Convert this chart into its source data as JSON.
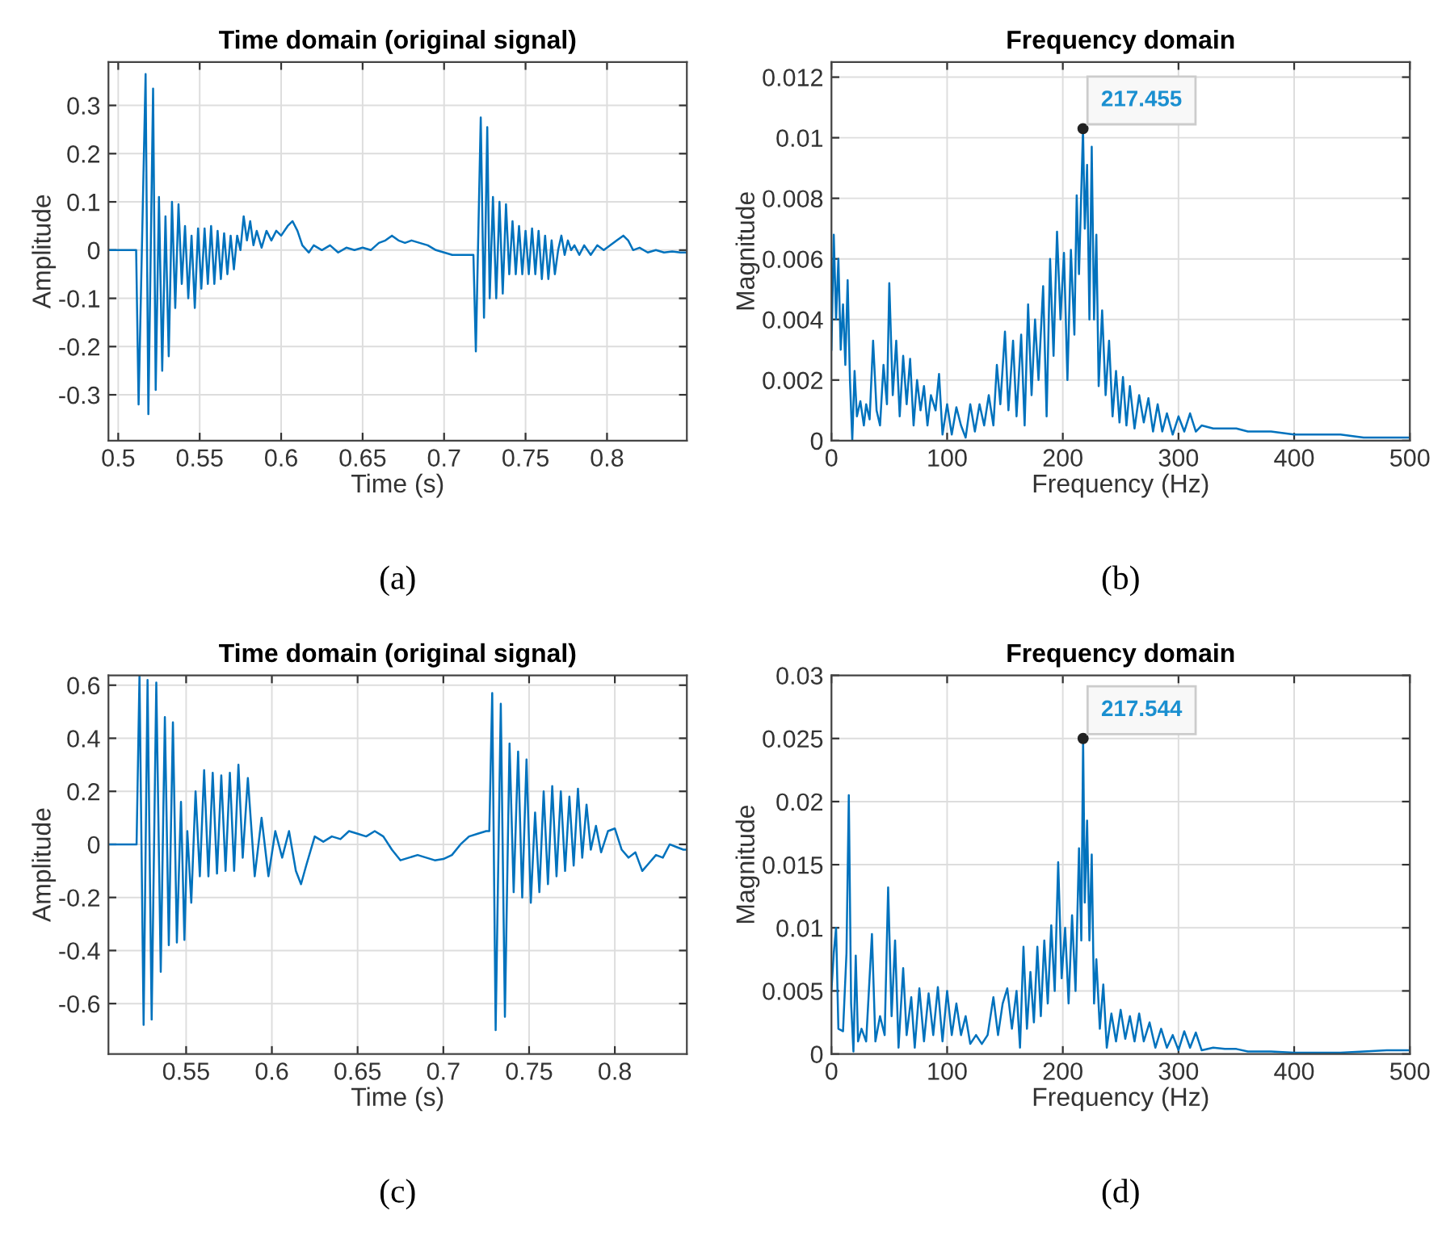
{
  "chart_data": [
    {
      "type": "line",
      "title": "Time domain (original signal)",
      "xlabel": "Time (s)",
      "ylabel": "Amplitude",
      "xlim": [
        0.494,
        0.849
      ],
      "ylim": [
        -0.395,
        0.39
      ],
      "xticks": [
        0.5,
        0.55,
        0.6,
        0.65,
        0.7,
        0.75,
        0.8
      ],
      "yticks": [
        -0.3,
        -0.2,
        -0.1,
        0,
        0.1,
        0.2,
        0.3
      ],
      "grid": true,
      "annotations": [
        "(a)"
      ],
      "series": [
        {
          "color": "#0072bd",
          "x": [
            0.494,
            0.511,
            0.5125,
            0.5168,
            0.5185,
            0.5214,
            0.523,
            0.525,
            0.527,
            0.529,
            0.531,
            0.533,
            0.535,
            0.537,
            0.539,
            0.541,
            0.543,
            0.545,
            0.547,
            0.549,
            0.551,
            0.553,
            0.555,
            0.557,
            0.559,
            0.561,
            0.563,
            0.565,
            0.567,
            0.569,
            0.571,
            0.573,
            0.575,
            0.577,
            0.579,
            0.581,
            0.583,
            0.585,
            0.588,
            0.591,
            0.594,
            0.597,
            0.6,
            0.604,
            0.607,
            0.61,
            0.613,
            0.617,
            0.62,
            0.625,
            0.63,
            0.635,
            0.64,
            0.645,
            0.65,
            0.655,
            0.66,
            0.664,
            0.668,
            0.672,
            0.676,
            0.68,
            0.685,
            0.69,
            0.695,
            0.7,
            0.705,
            0.71,
            0.715,
            0.718,
            0.7195,
            0.7225,
            0.7245,
            0.7265,
            0.728,
            0.73,
            0.732,
            0.734,
            0.736,
            0.738,
            0.74,
            0.742,
            0.744,
            0.746,
            0.748,
            0.75,
            0.752,
            0.754,
            0.756,
            0.758,
            0.76,
            0.762,
            0.764,
            0.766,
            0.768,
            0.77,
            0.772,
            0.774,
            0.776,
            0.778,
            0.78,
            0.783,
            0.786,
            0.79,
            0.794,
            0.798,
            0.802,
            0.806,
            0.81,
            0.813,
            0.816,
            0.82,
            0.825,
            0.83,
            0.835,
            0.84,
            0.845,
            0.849
          ],
          "values": [
            0,
            0,
            -0.32,
            0.365,
            -0.34,
            0.335,
            -0.29,
            0.11,
            -0.25,
            0.07,
            -0.22,
            0.1,
            -0.12,
            0.095,
            -0.07,
            0.05,
            -0.1,
            0.03,
            -0.12,
            0.045,
            -0.08,
            0.045,
            -0.07,
            0.05,
            -0.07,
            0.04,
            -0.06,
            0.035,
            -0.05,
            0.03,
            -0.04,
            0.03,
            0.0,
            0.07,
            0.02,
            0.06,
            0.01,
            0.04,
            0.005,
            0.04,
            0.02,
            0.04,
            0.03,
            0.05,
            0.06,
            0.04,
            0.01,
            -0.005,
            0.01,
            0.0,
            0.01,
            -0.005,
            0.005,
            0.0,
            0.005,
            0.0,
            0.015,
            0.02,
            0.03,
            0.02,
            0.015,
            0.02,
            0.015,
            0.01,
            0.0,
            -0.005,
            -0.01,
            -0.01,
            -0.01,
            -0.01,
            -0.21,
            0.275,
            -0.14,
            0.255,
            -0.1,
            0.11,
            -0.1,
            0.1,
            -0.09,
            0.095,
            -0.05,
            0.06,
            -0.05,
            0.05,
            -0.05,
            0.04,
            -0.05,
            0.045,
            -0.05,
            0.04,
            -0.06,
            0.03,
            -0.06,
            0.02,
            -0.05,
            0.0,
            0.03,
            -0.01,
            0.02,
            0.0,
            0.01,
            -0.01,
            0.01,
            -0.01,
            0.01,
            0.0,
            0.01,
            0.02,
            0.03,
            0.02,
            0.0,
            0.005,
            -0.005,
            0.0,
            -0.005,
            -0.003,
            -0.005,
            -0.005
          ]
        }
      ]
    },
    {
      "type": "line",
      "title": "Frequency domain",
      "xlabel": "Frequency (Hz)",
      "ylabel": "Magnitude",
      "xlim": [
        0,
        500
      ],
      "ylim": [
        0,
        0.0125
      ],
      "xticks": [
        0,
        100,
        200,
        300,
        400,
        500
      ],
      "yticks": [
        0,
        0.002,
        0.004,
        0.006,
        0.008,
        0.01,
        0.012
      ],
      "grid": true,
      "annotations": [
        {
          "text": "217.455",
          "x": 217.455,
          "y": 0.0103
        },
        "(b)"
      ],
      "series": [
        {
          "color": "#0072bd",
          "x": [
            0,
            2,
            4,
            6,
            8,
            10,
            12,
            14,
            16,
            18,
            20,
            22,
            25,
            28,
            30,
            33,
            36,
            39,
            42,
            45,
            48,
            50,
            53,
            56,
            59,
            62,
            65,
            68,
            71,
            74,
            77,
            80,
            83,
            86,
            90,
            93,
            96,
            100,
            104,
            108,
            112,
            116,
            120,
            124,
            128,
            132,
            136,
            140,
            143,
            146,
            150,
            153,
            157,
            160,
            164,
            167,
            170,
            173,
            176,
            179,
            183,
            186,
            189,
            192,
            195,
            198,
            201,
            204,
            207,
            210,
            212,
            214,
            217.455,
            219,
            221,
            223,
            225,
            227,
            229,
            231,
            234,
            237,
            240,
            243,
            246,
            249,
            252,
            255,
            258,
            262,
            266,
            270,
            274,
            278,
            282,
            286,
            290,
            295,
            300,
            305,
            310,
            315,
            320,
            330,
            340,
            350,
            360,
            370,
            380,
            400,
            420,
            440,
            460,
            480,
            500
          ],
          "values": [
            0.003,
            0.0068,
            0.004,
            0.006,
            0.003,
            0.0045,
            0.0025,
            0.0053,
            0.002,
            0,
            0.0023,
            0.0008,
            0.0013,
            0.0005,
            0.0012,
            0.0007,
            0.0033,
            0.001,
            0.0005,
            0.0025,
            0.0012,
            0.0052,
            0.0015,
            0.0033,
            0.0008,
            0.0028,
            0.0012,
            0.0027,
            0.0005,
            0.002,
            0.001,
            0.0018,
            0.0005,
            0.0015,
            0.001,
            0.0022,
            0.0002,
            0.0012,
            0.0002,
            0.0011,
            0.0005,
            0.0001,
            0.0012,
            0.0003,
            0.0012,
            0.0005,
            0.0015,
            0.0005,
            0.0025,
            0.0012,
            0.0036,
            0.001,
            0.0033,
            0.0008,
            0.0035,
            0.0005,
            0.0045,
            0.0015,
            0.004,
            0.002,
            0.0051,
            0.0008,
            0.006,
            0.0028,
            0.0069,
            0.004,
            0.0062,
            0.002,
            0.0063,
            0.0035,
            0.0081,
            0.0055,
            0.0103,
            0.007,
            0.0091,
            0.004,
            0.0097,
            0.004,
            0.0068,
            0.0018,
            0.0043,
            0.0015,
            0.0033,
            0.0008,
            0.0023,
            0.0006,
            0.0021,
            0.0005,
            0.0018,
            0.0004,
            0.0015,
            0.0006,
            0.0014,
            0.0003,
            0.0012,
            0.0003,
            0.0009,
            0.0002,
            0.0008,
            0.0003,
            0.0009,
            0.0003,
            0.0005,
            0.0004,
            0.0004,
            0.0004,
            0.0003,
            0.0003,
            0.0003,
            0.0002,
            0.0002,
            0.0002,
            0.0001,
            0.0001,
            0.0001
          ]
        }
      ]
    },
    {
      "type": "line",
      "title": "Time domain (original signal)",
      "xlabel": "Time (s)",
      "ylabel": "Amplitude",
      "xlim": [
        0.5047,
        0.842
      ],
      "ylim": [
        -0.79,
        0.637
      ],
      "xticks": [
        0.55,
        0.6,
        0.65,
        0.7,
        0.75,
        0.8
      ],
      "yticks": [
        -0.6,
        -0.4,
        -0.2,
        0,
        0.2,
        0.4,
        0.6
      ],
      "grid": true,
      "annotations": [
        "(c)"
      ],
      "series": [
        {
          "color": "#0072bd",
          "x": [
            0.5047,
            0.5211,
            0.5228,
            0.5252,
            0.5275,
            0.5299,
            0.5326,
            0.5352,
            0.5376,
            0.5399,
            0.5423,
            0.5446,
            0.547,
            0.549,
            0.5507,
            0.553,
            0.5555,
            0.558,
            0.5605,
            0.563,
            0.5655,
            0.568,
            0.5705,
            0.573,
            0.5755,
            0.578,
            0.5805,
            0.583,
            0.586,
            0.59,
            0.594,
            0.598,
            0.602,
            0.606,
            0.61,
            0.614,
            0.617,
            0.62,
            0.625,
            0.63,
            0.635,
            0.64,
            0.645,
            0.65,
            0.655,
            0.66,
            0.665,
            0.67,
            0.675,
            0.68,
            0.685,
            0.69,
            0.695,
            0.7,
            0.705,
            0.71,
            0.715,
            0.72,
            0.725,
            0.7268,
            0.7285,
            0.7305,
            0.7335,
            0.7359,
            0.7386,
            0.741,
            0.7436,
            0.746,
            0.7485,
            0.751,
            0.7535,
            0.756,
            0.7585,
            0.761,
            0.7635,
            0.766,
            0.7685,
            0.771,
            0.7735,
            0.776,
            0.7785,
            0.781,
            0.7835,
            0.786,
            0.789,
            0.792,
            0.796,
            0.8,
            0.804,
            0.808,
            0.812,
            0.816,
            0.82,
            0.824,
            0.828,
            0.832,
            0.836,
            0.84,
            0.842
          ],
          "values": [
            0,
            0,
            0.637,
            -0.68,
            0.62,
            -0.66,
            0.61,
            -0.48,
            0.48,
            -0.38,
            0.46,
            -0.37,
            0.16,
            -0.36,
            0.05,
            -0.22,
            0.2,
            -0.12,
            0.28,
            -0.12,
            0.27,
            -0.11,
            0.26,
            -0.1,
            0.27,
            -0.1,
            0.3,
            -0.05,
            0.25,
            -0.12,
            0.1,
            -0.12,
            0.05,
            -0.05,
            0.05,
            -0.1,
            -0.15,
            -0.08,
            0.03,
            0.01,
            0.03,
            0.02,
            0.05,
            0.04,
            0.03,
            0.05,
            0.03,
            -0.02,
            -0.06,
            -0.05,
            -0.04,
            -0.05,
            -0.06,
            -0.055,
            -0.04,
            0.0,
            0.03,
            0.04,
            0.05,
            0.05,
            0.57,
            -0.7,
            0.53,
            -0.65,
            0.38,
            -0.18,
            0.35,
            -0.2,
            0.32,
            -0.22,
            0.12,
            -0.18,
            0.2,
            -0.15,
            0.22,
            -0.12,
            0.2,
            -0.1,
            0.18,
            -0.08,
            0.21,
            -0.05,
            0.15,
            -0.02,
            0.07,
            -0.03,
            0.05,
            0.06,
            -0.02,
            -0.05,
            -0.03,
            -0.1,
            -0.07,
            -0.04,
            -0.05,
            0.0,
            -0.01,
            -0.02,
            -0.02
          ]
        }
      ]
    },
    {
      "type": "line",
      "title": "Frequency domain",
      "xlabel": "Frequency (Hz)",
      "ylabel": "Magnitude",
      "xlim": [
        0,
        500
      ],
      "ylim": [
        0,
        0.03
      ],
      "xticks": [
        0,
        100,
        200,
        300,
        400,
        500
      ],
      "yticks": [
        0,
        0.005,
        0.01,
        0.015,
        0.02,
        0.025,
        0.03
      ],
      "grid": true,
      "annotations": [
        {
          "text": "217.544",
          "x": 217.544,
          "y": 0.025
        },
        "(d)"
      ],
      "series": [
        {
          "color": "#0072bd",
          "x": [
            0,
            2,
            4,
            6,
            10,
            13,
            15,
            17,
            19,
            21,
            23,
            26,
            30,
            35,
            38,
            42,
            46,
            49,
            52,
            55,
            58,
            62,
            65,
            69,
            72,
            76,
            80,
            84,
            88,
            92,
            96,
            100,
            104,
            108,
            112,
            116,
            120,
            125,
            130,
            135,
            140,
            144,
            148,
            152,
            156,
            160,
            163,
            166,
            169,
            172,
            175,
            178,
            181,
            184,
            187,
            190,
            193,
            196,
            199,
            202,
            205,
            208,
            211,
            214,
            216,
            217.544,
            219,
            221,
            223,
            225,
            227,
            229,
            232,
            235,
            238,
            242,
            246,
            250,
            254,
            258,
            262,
            266,
            270,
            275,
            280,
            285,
            290,
            295,
            300,
            305,
            310,
            315,
            320,
            330,
            340,
            350,
            360,
            380,
            400,
            420,
            440,
            460,
            480,
            500
          ],
          "values": [
            0.005,
            0.008,
            0.01,
            0.002,
            0.0018,
            0.008,
            0.0205,
            0.004,
            0.0002,
            0.0078,
            0.001,
            0.002,
            0.001,
            0.0095,
            0.001,
            0.003,
            0.0015,
            0.0132,
            0.003,
            0.009,
            0.0005,
            0.0068,
            0.0015,
            0.0045,
            0.0005,
            0.0052,
            0.001,
            0.0048,
            0.0015,
            0.0053,
            0.001,
            0.005,
            0.0015,
            0.004,
            0.0015,
            0.003,
            0.0008,
            0.0015,
            0.0008,
            0.0015,
            0.0045,
            0.0015,
            0.004,
            0.0052,
            0.002,
            0.005,
            0.0005,
            0.0085,
            0.002,
            0.0065,
            0.0025,
            0.0085,
            0.003,
            0.009,
            0.004,
            0.0102,
            0.005,
            0.0152,
            0.006,
            0.01,
            0.004,
            0.011,
            0.005,
            0.0163,
            0.009,
            0.025,
            0.012,
            0.0185,
            0.009,
            0.0158,
            0.004,
            0.0075,
            0.002,
            0.0055,
            0.0005,
            0.0032,
            0.001,
            0.0035,
            0.0012,
            0.003,
            0.001,
            0.0032,
            0.001,
            0.0025,
            0.0005,
            0.002,
            0.0005,
            0.0015,
            0.0003,
            0.0018,
            0.0005,
            0.0017,
            0.0003,
            0.0005,
            0.0004,
            0.0004,
            0.0002,
            0.0002,
            0.0001,
            0.0001,
            0.0001,
            0.0002,
            0.0003,
            0.0003
          ]
        }
      ]
    }
  ]
}
